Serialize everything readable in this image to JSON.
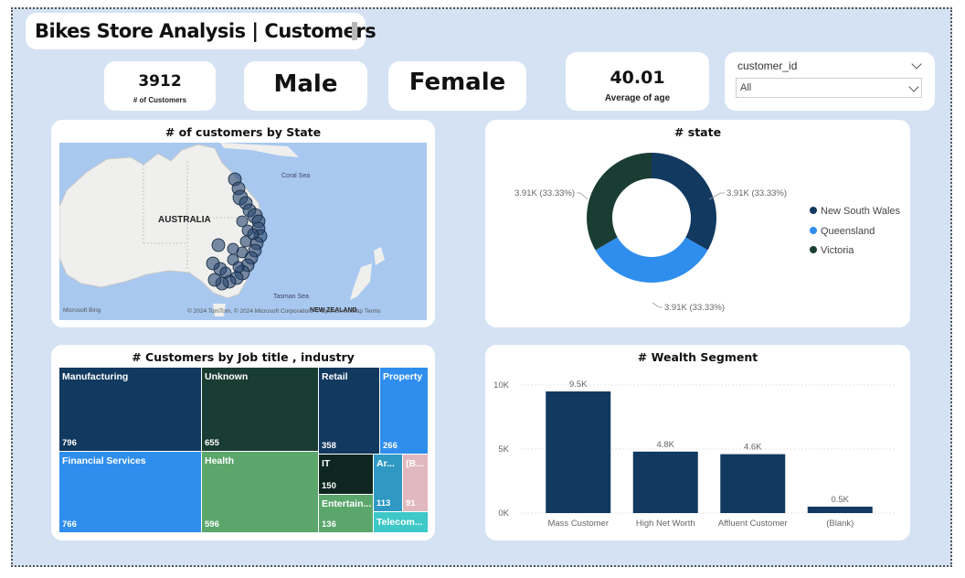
{
  "header": {
    "title": "Bikes Store Analysis | Customers"
  },
  "kpis": {
    "customers_value": "3912",
    "customers_label": "# of Customers",
    "male_label": "Male",
    "female_label": "Female",
    "age_value": "40.01",
    "age_label": "Average of age"
  },
  "slicer": {
    "field": "customer_id",
    "value": "All"
  },
  "map": {
    "title": "# of customers by State",
    "country_label": "AUSTRALIA",
    "sea_labels": [
      "Coral Sea",
      "Tasman Sea"
    ],
    "nz_label": "NEW ZEALAND",
    "attribution": "© 2024 TomTom, © 2024 Microsoft Corporation, © OpenStreetMap  Terms",
    "logo": "Microsoft Bing"
  },
  "donut": {
    "title": "# state",
    "data_label": "3.91K (33.33%)",
    "legend": [
      {
        "name": "New South Wales",
        "color": "#12395f"
      },
      {
        "name": "Queensland",
        "color": "#2f8eed"
      },
      {
        "name": "Victoria",
        "color": "#1a3d33"
      }
    ]
  },
  "treemap": {
    "title": "# Customers by Job title , industry",
    "cells": [
      {
        "name": "Manufacturing",
        "value": "796",
        "color": "#12395f"
      },
      {
        "name": "Financial Services",
        "value": "766",
        "color": "#2f8eed"
      },
      {
        "name": "Unknown",
        "value": "655",
        "color": "#1a3d33"
      },
      {
        "name": "Health",
        "value": "596",
        "color": "#5aa66b"
      },
      {
        "name": "Retail",
        "value": "358",
        "color": "#12395f"
      },
      {
        "name": "Property",
        "value": "266",
        "color": "#2f8eed"
      },
      {
        "name": "IT",
        "value": "150",
        "color": "#0e2620"
      },
      {
        "name": "Entertain...",
        "value": "136",
        "color": "#5aa66b"
      },
      {
        "name": "Ar...",
        "value": "113",
        "color": "#2f99c4"
      },
      {
        "name": "(B...",
        "value": "91",
        "color": "#e0b8bd"
      },
      {
        "name": "Telecom...",
        "value": "",
        "color": "#3ec8c8"
      }
    ]
  },
  "chart_data": {
    "type": "bar",
    "title": "# Wealth Segment",
    "categories": [
      "Mass Customer",
      "High Net Worth",
      "Affluent Customer",
      "(Blank)"
    ],
    "values": [
      9.5,
      4.8,
      4.6,
      0.5
    ],
    "value_labels": [
      "9.5K",
      "4.8K",
      "4.6K",
      "0.5K"
    ],
    "y_ticks": [
      "10K",
      "5K",
      "0K"
    ],
    "ylim": [
      0,
      10
    ],
    "bar_color": "#12395f",
    "xlabel": "",
    "ylabel": ""
  }
}
